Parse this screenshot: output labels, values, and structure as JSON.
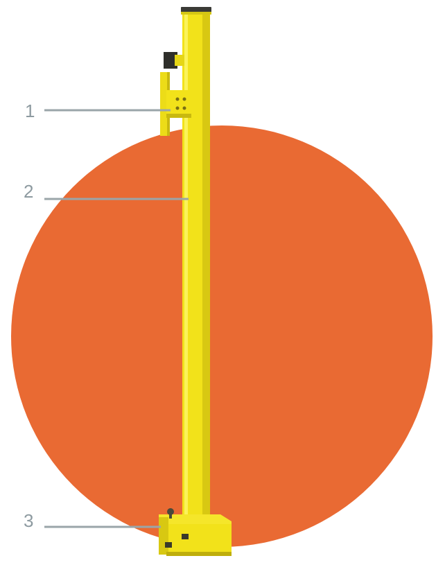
{
  "callouts": [
    {
      "number": "1"
    },
    {
      "number": "2"
    },
    {
      "number": "3"
    }
  ],
  "colors": {
    "background_circle": "#e96a33",
    "post_yellow": "#f2e21a",
    "post_shadow": "#c9b90f",
    "post_highlight": "#fbf35a",
    "cap_dark": "#3a3a36",
    "leader_line": "#9aa5a9",
    "number_text": "#8d9aa0"
  },
  "icons": {
    "post": "barrier-post-icon",
    "clamp": "clamp-bracket-icon",
    "base": "base-plate-icon"
  }
}
